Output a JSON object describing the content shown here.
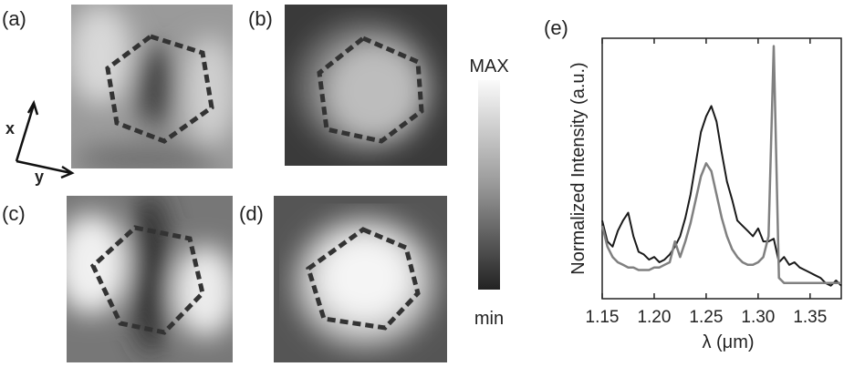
{
  "panels": [
    {
      "label": "(a)"
    },
    {
      "label": "(b)"
    },
    {
      "label": "(c)"
    },
    {
      "label": "(d)"
    }
  ],
  "axes_icon": {
    "x": "x",
    "y": "y"
  },
  "colorbar": {
    "max": "MAX",
    "min": "min"
  },
  "chart_data": {
    "type": "line",
    "title": "(e)",
    "xlabel": "λ (μm)",
    "ylabel": "Normalized Intensity (a.u.)",
    "xlim": [
      1.15,
      1.38
    ],
    "ylim": [
      0,
      1
    ],
    "xticks": [
      {
        "value": 1.15,
        "label": "1.15"
      },
      {
        "value": 1.2,
        "label": "1.20"
      },
      {
        "value": 1.25,
        "label": "1.25"
      },
      {
        "value": 1.3,
        "label": "1.30"
      },
      {
        "value": 1.35,
        "label": "1.35"
      }
    ],
    "x": [
      1.15,
      1.155,
      1.16,
      1.165,
      1.17,
      1.175,
      1.18,
      1.185,
      1.19,
      1.195,
      1.2,
      1.205,
      1.21,
      1.215,
      1.22,
      1.225,
      1.23,
      1.235,
      1.24,
      1.245,
      1.25,
      1.255,
      1.26,
      1.265,
      1.27,
      1.275,
      1.28,
      1.285,
      1.29,
      1.295,
      1.3,
      1.305,
      1.31,
      1.315,
      1.32,
      1.325,
      1.33,
      1.335,
      1.34,
      1.345,
      1.35,
      1.355,
      1.36,
      1.365,
      1.37,
      1.375,
      1.38
    ],
    "series": [
      {
        "color": "#1a1a1a",
        "values": [
          0.3,
          0.22,
          0.2,
          0.26,
          0.3,
          0.33,
          0.24,
          0.18,
          0.17,
          0.15,
          0.16,
          0.14,
          0.15,
          0.17,
          0.2,
          0.24,
          0.31,
          0.4,
          0.52,
          0.64,
          0.7,
          0.74,
          0.68,
          0.56,
          0.45,
          0.38,
          0.3,
          0.28,
          0.26,
          0.24,
          0.27,
          0.22,
          0.22,
          0.23,
          0.14,
          0.16,
          0.13,
          0.14,
          0.12,
          0.11,
          0.1,
          0.09,
          0.08,
          0.06,
          0.05,
          0.07,
          0.05
        ]
      },
      {
        "color": "#808080",
        "values": [
          0.28,
          0.2,
          0.16,
          0.14,
          0.13,
          0.12,
          0.12,
          0.11,
          0.11,
          0.11,
          0.12,
          0.12,
          0.13,
          0.14,
          0.22,
          0.16,
          0.22,
          0.29,
          0.38,
          0.47,
          0.52,
          0.49,
          0.4,
          0.31,
          0.24,
          0.19,
          0.16,
          0.14,
          0.13,
          0.13,
          0.14,
          0.16,
          0.24,
          0.97,
          0.08,
          0.06,
          0.06,
          0.06,
          0.06,
          0.06,
          0.06,
          0.06,
          0.06,
          0.06,
          0.06,
          0.06,
          0.06
        ]
      }
    ]
  }
}
